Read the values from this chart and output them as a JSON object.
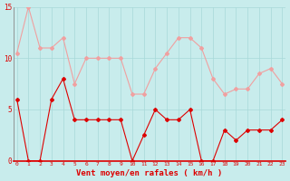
{
  "hours": [
    0,
    1,
    2,
    3,
    4,
    5,
    6,
    7,
    8,
    9,
    10,
    11,
    12,
    13,
    14,
    15,
    16,
    17,
    18,
    19,
    20,
    21,
    22,
    23
  ],
  "vent_moyen": [
    6,
    0,
    0,
    6,
    8,
    4,
    4,
    4,
    4,
    4,
    0,
    2.5,
    5,
    4,
    4,
    5,
    0,
    0,
    3,
    2,
    3,
    3,
    3,
    4
  ],
  "en_rafales": [
    10.5,
    15,
    11,
    11,
    12,
    7.5,
    10,
    10,
    10,
    10,
    6.5,
    6.5,
    9,
    10.5,
    12,
    12,
    11,
    8,
    6.5,
    7,
    7,
    8.5,
    9,
    7.5
  ],
  "color_moyen": "#dd0000",
  "color_rafales": "#f0a0a0",
  "background_color": "#c8ecec",
  "grid_color": "#a8d8d8",
  "xlabel": "Vent moyen/en rafales ( km/h )",
  "xlabel_color": "#dd0000",
  "tick_color": "#dd0000",
  "spine_color": "#dd0000",
  "ylim": [
    0,
    15
  ],
  "yticks": [
    0,
    5,
    10,
    15
  ],
  "figsize": [
    3.2,
    2.0
  ],
  "dpi": 100
}
